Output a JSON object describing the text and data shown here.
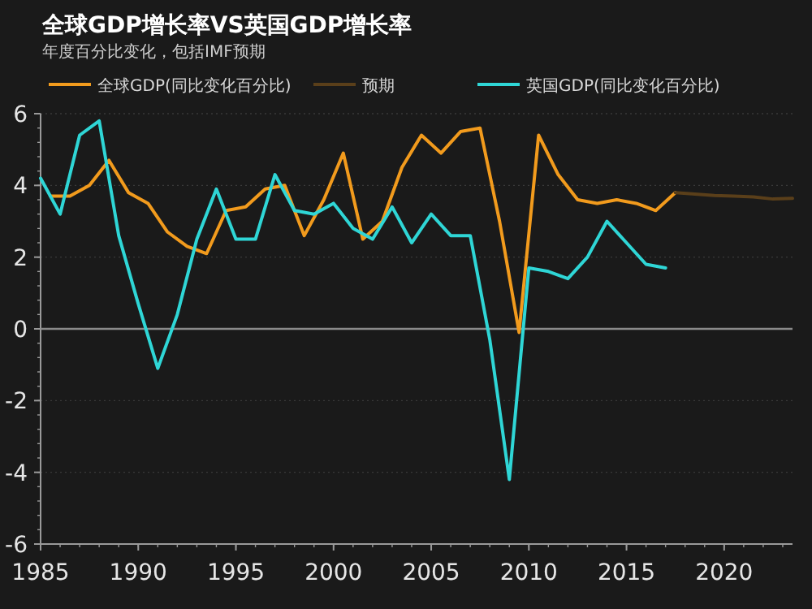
{
  "chart_data": {
    "type": "line",
    "title": "全球GDP增长率VS英国GDP增长率",
    "subtitle": "年度百分比变化，包括IMF预期",
    "series": [
      {
        "name": "全球GDP(同比变化百分比)",
        "color": "#f29b1d",
        "x": [
          1985.5,
          1986.5,
          1987.5,
          1988.5,
          1989.5,
          1990.5,
          1991.5,
          1992.5,
          1993.5,
          1994.5,
          1995.5,
          1996.5,
          1997.5,
          1998.5,
          1999.5,
          2000.5,
          2001.5,
          2002.5,
          2003.5,
          2004.5,
          2005.5,
          2006.5,
          2007.5,
          2008.5,
          2009.5,
          2010.5,
          2011.5,
          2012.5,
          2013.5,
          2014.5,
          2015.5,
          2016.5,
          2017.5
        ],
        "values": [
          3.7,
          3.7,
          4.0,
          4.7,
          3.8,
          3.5,
          2.7,
          2.3,
          2.1,
          3.3,
          3.4,
          3.9,
          4.0,
          2.6,
          3.6,
          4.9,
          2.5,
          3.0,
          4.5,
          5.4,
          4.9,
          5.5,
          5.6,
          3.0,
          -0.1,
          5.4,
          4.3,
          3.6,
          3.5,
          3.6,
          3.5,
          3.3,
          3.8
        ]
      },
      {
        "name": "预期",
        "color": "#5a3f1a",
        "x": [
          2017.5,
          2018.5,
          2019.5,
          2020.5,
          2021.5,
          2022.5,
          2023.5
        ],
        "values": [
          3.8,
          3.76,
          3.72,
          3.7,
          3.68,
          3.62,
          3.64
        ]
      },
      {
        "name": "英国GDP(同比变化百分比)",
        "color": "#2fd6d6",
        "x": [
          1985,
          1986,
          1987,
          1988,
          1989,
          1990,
          1991,
          1992,
          1993,
          1994,
          1995,
          1996,
          1997,
          1998,
          1999,
          2000,
          2001,
          2002,
          2003,
          2004,
          2005,
          2006,
          2007,
          2008,
          2009,
          2010,
          2011,
          2012,
          2013,
          2014,
          2015,
          2016,
          2017
        ],
        "values": [
          4.2,
          3.2,
          5.4,
          5.8,
          2.6,
          0.7,
          -1.1,
          0.4,
          2.5,
          3.9,
          2.5,
          2.5,
          4.3,
          3.3,
          3.2,
          3.5,
          2.8,
          2.5,
          3.4,
          2.4,
          3.2,
          2.6,
          2.6,
          -0.3,
          -4.2,
          1.7,
          1.6,
          1.4,
          2.0,
          3.0,
          2.4,
          1.8,
          1.7
        ]
      }
    ],
    "xlim": [
      1985,
      2023.5
    ],
    "xticks": [
      1985,
      1990,
      1995,
      2000,
      2005,
      2010,
      2015,
      2020
    ],
    "ylim": [
      -6,
      6
    ],
    "yticks": [
      -6,
      -4,
      -2,
      0,
      2,
      4,
      6
    ],
    "ref_lines": [
      {
        "axis": "y",
        "value": 0,
        "color": "#8a8a8a"
      }
    ],
    "grid": "y",
    "legend": "top",
    "marker": "none",
    "line_style": "solid"
  }
}
